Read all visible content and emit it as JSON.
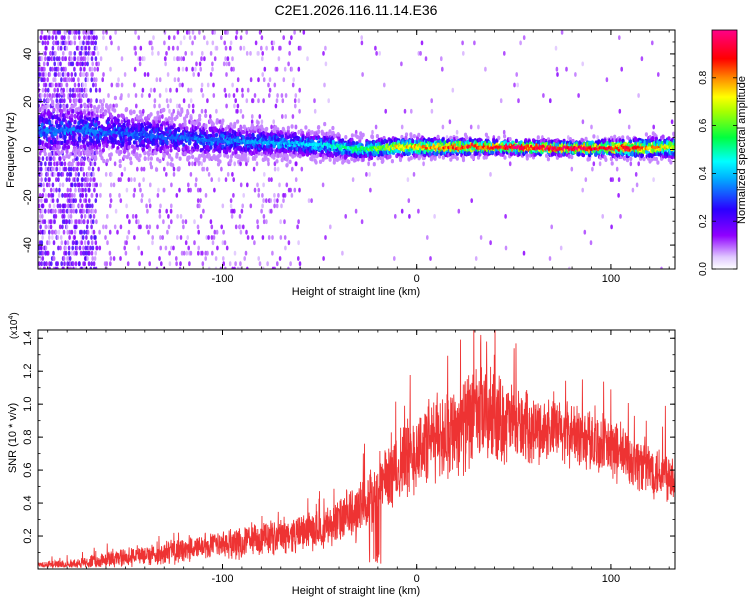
{
  "figure_title": "C2E1.2026.116.11.14.E36",
  "chart_data": [
    {
      "type": "heatmap",
      "title": "C2E1.2026.116.11.14.E36",
      "xlabel": "Height of straight line (km)",
      "ylabel": "Frequency (Hz)",
      "xlim": [
        -195,
        133
      ],
      "ylim": [
        -50,
        50
      ],
      "xticks": [
        -100,
        0,
        100
      ],
      "yticks": [
        -40,
        -20,
        0,
        20,
        40
      ],
      "grid": false,
      "colorbar": {
        "label": "Normalized spectral amplitude",
        "range": [
          0,
          1
        ],
        "ticks": [
          0.0,
          0.2,
          0.4,
          0.6,
          0.8
        ],
        "tick_labels": [
          "0.0",
          "0.2",
          "0.4",
          "0.6",
          "0.8"
        ],
        "colormap": [
          "#ffffff",
          "#d8b4fe",
          "#8b00ff",
          "#3300ff",
          "#00ffff",
          "#00ff66",
          "#ffff00",
          "#ff7700",
          "#ff0000",
          "#ff0088"
        ]
      },
      "ridge": [
        {
          "x": -170,
          "y": 8,
          "spread": 7,
          "amplitude": 0.35
        },
        {
          "x": -140,
          "y": 6,
          "spread": 6,
          "amplitude": 0.33
        },
        {
          "x": -110,
          "y": 4,
          "spread": 5,
          "amplitude": 0.35
        },
        {
          "x": -80,
          "y": 3,
          "spread": 4,
          "amplitude": 0.38
        },
        {
          "x": -50,
          "y": 2,
          "spread": 3.5,
          "amplitude": 0.45
        },
        {
          "x": -30,
          "y": 0,
          "spread": 3,
          "amplitude": 0.55
        },
        {
          "x": -10,
          "y": 1,
          "spread": 2.5,
          "amplitude": 0.75
        },
        {
          "x": 10,
          "y": 1,
          "spread": 2.5,
          "amplitude": 0.85
        },
        {
          "x": 40,
          "y": 1,
          "spread": 2,
          "amplitude": 0.95
        },
        {
          "x": 80,
          "y": 0.5,
          "spread": 2,
          "amplitude": 1.0
        },
        {
          "x": 110,
          "y": 0.5,
          "spread": 2.5,
          "amplitude": 0.9
        },
        {
          "x": 133,
          "y": 1,
          "spread": 3,
          "amplitude": 0.7
        }
      ]
    },
    {
      "type": "line",
      "xlabel": "Height of straight line (km)",
      "ylabel": "SNR (10 * v/v)",
      "y_multiplier": "(x10",
      "y_multiplier_exp": "4",
      "y_multiplier_close": ")",
      "xlim": [
        -195,
        133
      ],
      "ylim": [
        0,
        14500
      ],
      "xticks": [
        -100,
        0,
        100
      ],
      "yticks": [
        2000,
        4000,
        6000,
        8000,
        10000,
        12000,
        14000
      ],
      "ytick_labels": [
        "0.2",
        "0.4",
        "0.6",
        "0.8",
        "1.0",
        "1.2",
        "1.4"
      ],
      "grid": false,
      "series": [
        {
          "name": "SNR",
          "color": "#ee3333",
          "x": [
            -195,
            -180,
            -170,
            -160,
            -150,
            -140,
            -130,
            -120,
            -110,
            -100,
            -90,
            -80,
            -70,
            -60,
            -50,
            -40,
            -33,
            -28,
            -22,
            -18,
            -10,
            0,
            10,
            20,
            30,
            35,
            40,
            45,
            50,
            55,
            60,
            70,
            80,
            90,
            100,
            110,
            120,
            125,
            133
          ],
          "mean": [
            250,
            300,
            400,
            550,
            700,
            850,
            1000,
            1150,
            1300,
            1450,
            1600,
            1800,
            2000,
            2200,
            2400,
            2900,
            3300,
            3700,
            4600,
            5200,
            6200,
            7200,
            8000,
            8600,
            9100,
            9300,
            9200,
            9000,
            8800,
            8600,
            8500,
            8400,
            8200,
            7800,
            7300,
            6700,
            6100,
            5900,
            5700
          ],
          "noise": [
            200,
            250,
            350,
            450,
            550,
            600,
            700,
            750,
            800,
            850,
            900,
            950,
            1000,
            1050,
            1100,
            1300,
            1700,
            1800,
            2000,
            2000,
            2200,
            2400,
            2500,
            2700,
            2900,
            2900,
            2700,
            2500,
            2300,
            2100,
            1900,
            1800,
            1800,
            1800,
            1800,
            1700,
            1600,
            1600,
            1600
          ],
          "peaks": [
            {
              "x": 33,
              "y": 14200
            },
            {
              "x": 36,
              "y": 13800
            },
            {
              "x": 40,
              "y": 13000
            },
            {
              "x": 100,
              "y": 10900
            },
            {
              "x": 128,
              "y": 9900
            },
            {
              "x": -32,
              "y": 3900
            },
            {
              "x": -25,
              "y": 5300
            }
          ]
        }
      ]
    }
  ]
}
